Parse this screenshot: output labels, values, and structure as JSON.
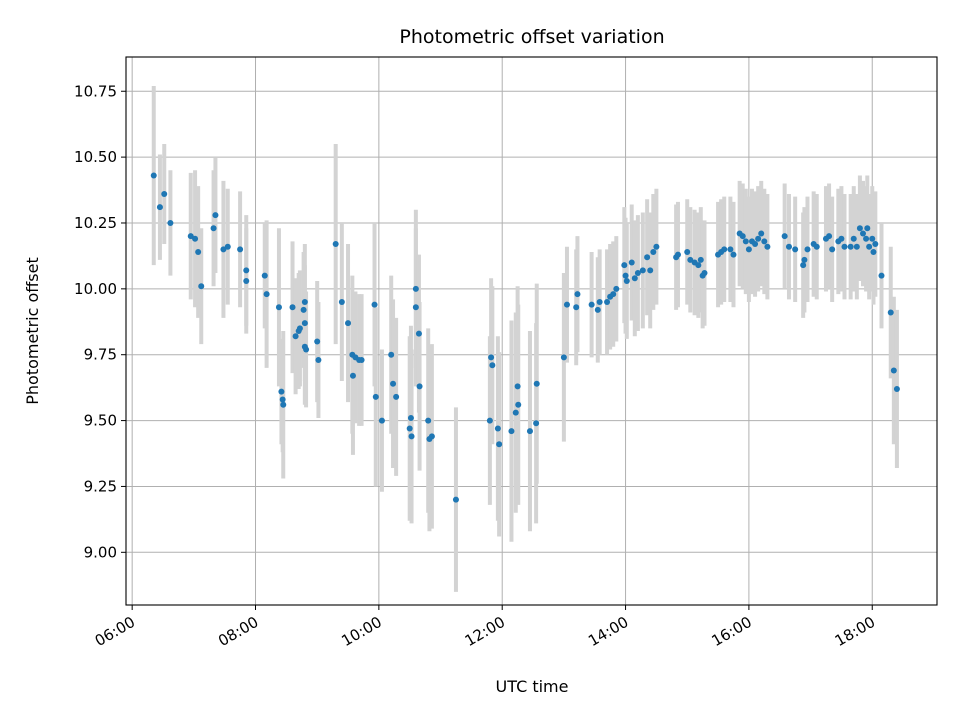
{
  "chart_data": {
    "type": "scatter",
    "title": "Photometric offset variation",
    "xlabel": "UTC time",
    "ylabel": "Photometric offset",
    "x_unit": "hours (UTC)",
    "xlim": [
      5.9,
      19.05
    ],
    "ylim": [
      8.8,
      10.88
    ],
    "x_ticks": [
      {
        "value": 6,
        "label": "06:00"
      },
      {
        "value": 8,
        "label": "08:00"
      },
      {
        "value": 10,
        "label": "10:00"
      },
      {
        "value": 12,
        "label": "12:00"
      },
      {
        "value": 14,
        "label": "14:00"
      },
      {
        "value": 16,
        "label": "16:00"
      },
      {
        "value": 18,
        "label": "18:00"
      }
    ],
    "y_ticks": [
      {
        "value": 9.0,
        "label": "9.00"
      },
      {
        "value": 9.25,
        "label": "9.25"
      },
      {
        "value": 9.5,
        "label": "9.50"
      },
      {
        "value": 9.75,
        "label": "9.75"
      },
      {
        "value": 10.0,
        "label": "10.00"
      },
      {
        "value": 10.25,
        "label": "10.25"
      },
      {
        "value": 10.5,
        "label": "10.50"
      },
      {
        "value": 10.75,
        "label": "10.75"
      }
    ],
    "grid": true,
    "marker_color": "#1f77b4",
    "errorbar_color": "#d3d3d3",
    "points": [
      [
        6.35,
        10.43,
        0.34
      ],
      [
        6.45,
        10.31,
        0.2
      ],
      [
        6.52,
        10.36,
        0.19
      ],
      [
        6.62,
        10.25,
        0.2
      ],
      [
        6.95,
        10.2,
        0.24
      ],
      [
        7.02,
        10.19,
        0.26
      ],
      [
        7.07,
        10.14,
        0.25
      ],
      [
        7.12,
        10.01,
        0.22
      ],
      [
        7.35,
        10.28,
        0.22
      ],
      [
        7.32,
        10.23,
        0.22
      ],
      [
        7.48,
        10.15,
        0.26
      ],
      [
        7.55,
        10.16,
        0.22
      ],
      [
        7.75,
        10.15,
        0.22
      ],
      [
        7.85,
        10.07,
        0.21
      ],
      [
        7.85,
        10.03,
        0.2
      ],
      [
        8.15,
        10.05,
        0.2
      ],
      [
        8.18,
        9.98,
        0.28
      ],
      [
        8.38,
        9.93,
        0.3
      ],
      [
        8.42,
        9.61,
        0.2
      ],
      [
        8.44,
        9.58,
        0.2
      ],
      [
        8.45,
        9.56,
        0.28
      ],
      [
        8.6,
        9.93,
        0.25
      ],
      [
        8.65,
        9.82,
        0.22
      ],
      [
        8.7,
        9.84,
        0.22
      ],
      [
        8.72,
        9.85,
        0.22
      ],
      [
        8.78,
        9.92,
        0.22
      ],
      [
        8.8,
        9.95,
        0.22
      ],
      [
        8.8,
        9.87,
        0.22
      ],
      [
        8.82,
        9.77,
        0.22
      ],
      [
        8.8,
        9.78,
        0.22
      ],
      [
        9.0,
        9.8,
        0.23
      ],
      [
        9.02,
        9.73,
        0.22
      ],
      [
        9.3,
        10.17,
        0.38
      ],
      [
        9.4,
        9.95,
        0.3
      ],
      [
        9.5,
        9.87,
        0.3
      ],
      [
        9.57,
        9.75,
        0.3
      ],
      [
        9.58,
        9.67,
        0.3
      ],
      [
        9.62,
        9.74,
        0.25
      ],
      [
        9.68,
        9.73,
        0.25
      ],
      [
        9.72,
        9.73,
        0.25
      ],
      [
        9.93,
        9.94,
        0.31
      ],
      [
        9.95,
        9.59,
        0.34
      ],
      [
        10.05,
        9.5,
        0.27
      ],
      [
        10.2,
        9.75,
        0.3
      ],
      [
        10.23,
        9.64,
        0.32
      ],
      [
        10.28,
        9.59,
        0.3
      ],
      [
        10.5,
        9.47,
        0.35
      ],
      [
        10.52,
        9.51,
        0.35
      ],
      [
        10.53,
        9.44,
        0.33
      ],
      [
        10.6,
        10.0,
        0.3
      ],
      [
        10.6,
        9.93,
        0.3
      ],
      [
        10.65,
        9.83,
        0.3
      ],
      [
        10.66,
        9.63,
        0.32
      ],
      [
        10.8,
        9.5,
        0.35
      ],
      [
        10.82,
        9.43,
        0.35
      ],
      [
        10.86,
        9.44,
        0.35
      ],
      [
        11.25,
        9.2,
        0.35
      ],
      [
        11.8,
        9.5,
        0.32
      ],
      [
        11.82,
        9.74,
        0.3
      ],
      [
        11.84,
        9.71,
        0.3
      ],
      [
        11.93,
        9.47,
        0.35
      ],
      [
        11.95,
        9.41,
        0.35
      ],
      [
        12.15,
        9.46,
        0.42
      ],
      [
        12.22,
        9.53,
        0.38
      ],
      [
        12.25,
        9.63,
        0.38
      ],
      [
        12.26,
        9.56,
        0.38
      ],
      [
        12.45,
        9.46,
        0.38
      ],
      [
        12.55,
        9.49,
        0.38
      ],
      [
        12.56,
        9.64,
        0.38
      ],
      [
        13.0,
        9.74,
        0.32
      ],
      [
        13.05,
        9.94,
        0.22
      ],
      [
        13.2,
        9.93,
        0.22
      ],
      [
        13.22,
        9.98,
        0.22
      ],
      [
        13.45,
        9.94,
        0.2
      ],
      [
        13.55,
        9.92,
        0.2
      ],
      [
        13.58,
        9.95,
        0.2
      ],
      [
        13.7,
        9.95,
        0.2
      ],
      [
        13.75,
        9.97,
        0.2
      ],
      [
        13.8,
        9.98,
        0.2
      ],
      [
        13.85,
        10.0,
        0.2
      ],
      [
        13.98,
        10.09,
        0.22
      ],
      [
        14.0,
        10.05,
        0.22
      ],
      [
        14.02,
        10.03,
        0.22
      ],
      [
        14.1,
        10.1,
        0.22
      ],
      [
        14.15,
        10.04,
        0.22
      ],
      [
        14.2,
        10.06,
        0.22
      ],
      [
        14.28,
        10.07,
        0.22
      ],
      [
        14.35,
        10.12,
        0.22
      ],
      [
        14.4,
        10.07,
        0.22
      ],
      [
        14.45,
        10.14,
        0.22
      ],
      [
        14.5,
        10.16,
        0.22
      ],
      [
        14.82,
        10.12,
        0.2
      ],
      [
        14.85,
        10.13,
        0.2
      ],
      [
        15.0,
        10.14,
        0.2
      ],
      [
        15.05,
        10.11,
        0.2
      ],
      [
        15.12,
        10.1,
        0.2
      ],
      [
        15.18,
        10.09,
        0.2
      ],
      [
        15.22,
        10.11,
        0.2
      ],
      [
        15.25,
        10.05,
        0.2
      ],
      [
        15.28,
        10.06,
        0.2
      ],
      [
        15.5,
        10.13,
        0.2
      ],
      [
        15.55,
        10.14,
        0.2
      ],
      [
        15.6,
        10.15,
        0.2
      ],
      [
        15.7,
        10.15,
        0.2
      ],
      [
        15.75,
        10.13,
        0.2
      ],
      [
        15.85,
        10.21,
        0.2
      ],
      [
        15.9,
        10.2,
        0.2
      ],
      [
        15.95,
        10.18,
        0.2
      ],
      [
        16.0,
        10.15,
        0.2
      ],
      [
        16.05,
        10.18,
        0.2
      ],
      [
        16.1,
        10.17,
        0.2
      ],
      [
        16.15,
        10.19,
        0.2
      ],
      [
        16.2,
        10.21,
        0.2
      ],
      [
        16.25,
        10.18,
        0.2
      ],
      [
        16.3,
        10.16,
        0.2
      ],
      [
        16.58,
        10.2,
        0.2
      ],
      [
        16.65,
        10.16,
        0.2
      ],
      [
        16.75,
        10.15,
        0.2
      ],
      [
        16.88,
        10.09,
        0.2
      ],
      [
        16.9,
        10.11,
        0.2
      ],
      [
        16.95,
        10.15,
        0.2
      ],
      [
        17.05,
        10.17,
        0.2
      ],
      [
        17.1,
        10.16,
        0.2
      ],
      [
        17.25,
        10.19,
        0.2
      ],
      [
        17.3,
        10.2,
        0.2
      ],
      [
        17.35,
        10.15,
        0.2
      ],
      [
        17.45,
        10.18,
        0.2
      ],
      [
        17.5,
        10.19,
        0.2
      ],
      [
        17.55,
        10.16,
        0.2
      ],
      [
        17.65,
        10.16,
        0.2
      ],
      [
        17.7,
        10.19,
        0.2
      ],
      [
        17.75,
        10.16,
        0.2
      ],
      [
        17.8,
        10.23,
        0.2
      ],
      [
        17.85,
        10.21,
        0.2
      ],
      [
        17.9,
        10.19,
        0.2
      ],
      [
        17.92,
        10.23,
        0.2
      ],
      [
        17.95,
        10.16,
        0.2
      ],
      [
        18.0,
        10.19,
        0.2
      ],
      [
        18.02,
        10.14,
        0.2
      ],
      [
        18.05,
        10.17,
        0.2
      ],
      [
        18.15,
        10.05,
        0.2
      ],
      [
        18.3,
        9.91,
        0.25
      ],
      [
        18.35,
        9.69,
        0.28
      ],
      [
        18.4,
        9.62,
        0.3
      ]
    ]
  }
}
